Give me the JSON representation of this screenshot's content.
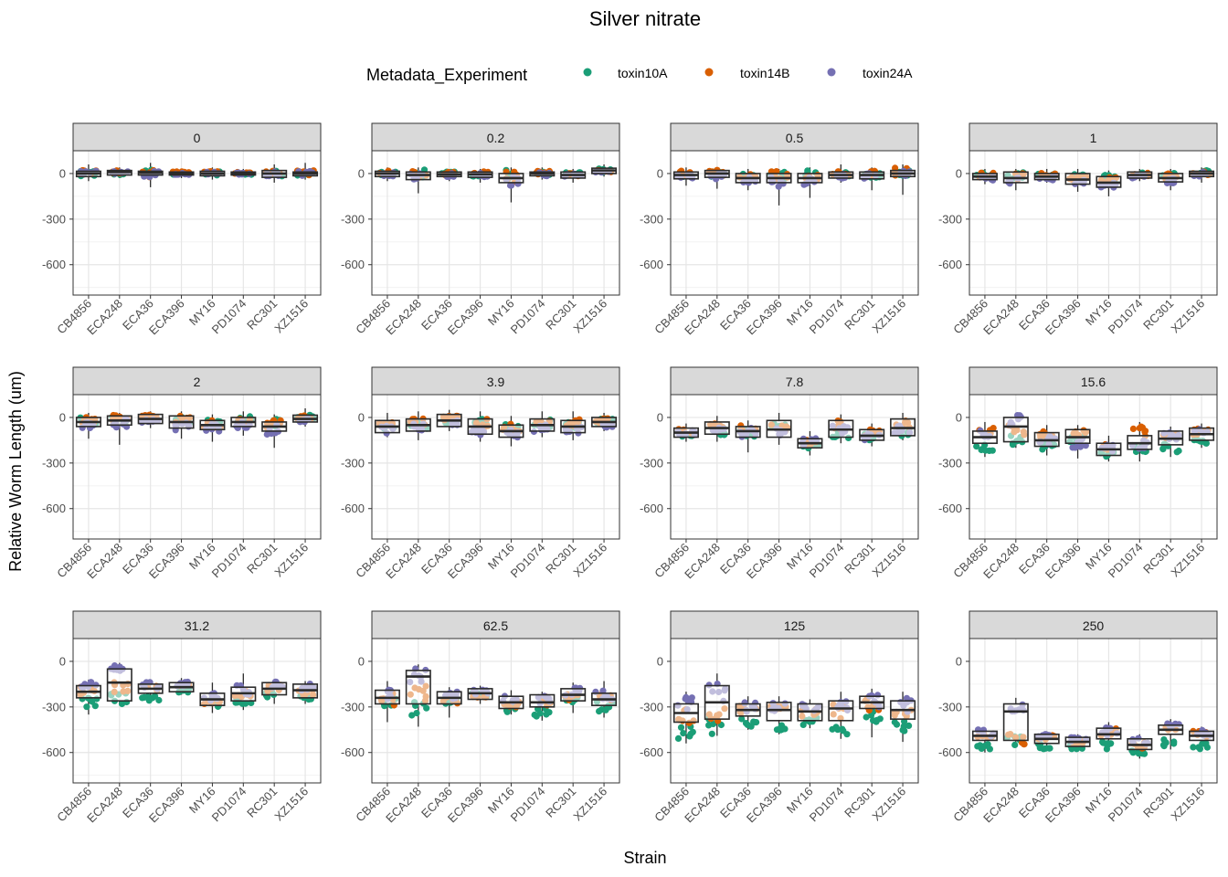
{
  "chart_data": {
    "type": "boxplot-jitter-facets",
    "title": "Silver nitrate",
    "xlabel": "Strain",
    "ylabel": "Relative Worm Length (um)",
    "ylim": [
      -800,
      150
    ],
    "yticks": [
      0,
      -300,
      -600
    ],
    "legend": {
      "title": "Metadata_Experiment",
      "position": "top",
      "entries": [
        {
          "name": "toxin10A",
          "color": "#1B9E77"
        },
        {
          "name": "toxin14B",
          "color": "#D95F02"
        },
        {
          "name": "toxin24A",
          "color": "#7570B3"
        }
      ]
    },
    "categories": [
      "CB4856",
      "ECA248",
      "ECA36",
      "ECA396",
      "MY16",
      "PD1074",
      "RC301",
      "XZ1516"
    ],
    "series_order": [
      "toxin10A",
      "toxin14B",
      "toxin24A"
    ],
    "facets": [
      {
        "label": "0",
        "median": [
          0,
          10,
          5,
          0,
          0,
          0,
          0,
          0
        ],
        "q1": [
          -20,
          -10,
          -10,
          -10,
          -15,
          -10,
          -25,
          -15
        ],
        "q3": [
          15,
          20,
          15,
          10,
          15,
          10,
          20,
          10
        ],
        "min": [
          -50,
          -30,
          -90,
          -30,
          -40,
          -20,
          -60,
          -40
        ],
        "max": [
          60,
          40,
          70,
          30,
          40,
          30,
          60,
          70
        ],
        "exp_mean": [
          [
            0,
            0,
            10,
            0,
            0,
            0,
            0,
            0
          ],
          [
            5,
            10,
            0,
            5,
            5,
            5,
            5,
            5
          ],
          [
            0,
            5,
            0,
            0,
            0,
            0,
            0,
            0
          ]
        ]
      },
      {
        "label": "0.2",
        "median": [
          0,
          -10,
          -5,
          -5,
          -30,
          0,
          -10,
          20
        ],
        "q1": [
          -20,
          -40,
          -20,
          -25,
          -60,
          -15,
          -30,
          0
        ],
        "q3": [
          15,
          10,
          10,
          10,
          0,
          10,
          10,
          35
        ],
        "min": [
          -50,
          -130,
          -50,
          -60,
          -190,
          -40,
          -60,
          -20
        ],
        "max": [
          40,
          40,
          30,
          30,
          40,
          40,
          30,
          60
        ],
        "exp_mean": [
          [
            0,
            0,
            0,
            -5,
            -10,
            0,
            -5,
            20
          ],
          [
            5,
            0,
            0,
            0,
            -20,
            5,
            -5,
            20
          ],
          [
            -5,
            -25,
            -10,
            -10,
            -50,
            -5,
            -15,
            15
          ]
        ]
      },
      {
        "label": "0.5",
        "median": [
          -10,
          0,
          -30,
          -30,
          -30,
          -10,
          -10,
          0
        ],
        "q1": [
          -35,
          -25,
          -60,
          -60,
          -60,
          -30,
          -35,
          -20
        ],
        "q3": [
          10,
          20,
          0,
          0,
          0,
          10,
          10,
          20
        ],
        "min": [
          -80,
          -100,
          -110,
          -210,
          -160,
          -60,
          -110,
          -140
        ],
        "max": [
          40,
          40,
          30,
          30,
          40,
          60,
          40,
          60
        ],
        "exp_mean": [
          [
            -10,
            0,
            -20,
            -20,
            -10,
            -5,
            -5,
            5
          ],
          [
            0,
            5,
            -20,
            -15,
            -20,
            0,
            0,
            10
          ],
          [
            -20,
            -15,
            -45,
            -50,
            -50,
            -20,
            -20,
            -10
          ]
        ]
      },
      {
        "label": "1",
        "median": [
          -20,
          -30,
          -20,
          -40,
          -60,
          -10,
          -30,
          0
        ],
        "q1": [
          -40,
          -60,
          -40,
          -70,
          -90,
          -30,
          -55,
          -20
        ],
        "q3": [
          0,
          10,
          0,
          0,
          -20,
          10,
          0,
          15
        ],
        "min": [
          -70,
          -110,
          -60,
          -120,
          -150,
          -50,
          -110,
          -60
        ],
        "max": [
          30,
          30,
          30,
          30,
          20,
          30,
          30,
          40
        ],
        "exp_mean": [
          [
            -10,
            -10,
            -10,
            -20,
            -30,
            -5,
            -15,
            5
          ],
          [
            -10,
            -20,
            -10,
            -30,
            -50,
            -5,
            -20,
            5
          ],
          [
            -30,
            -45,
            -30,
            -60,
            -80,
            -20,
            -45,
            -5
          ]
        ]
      },
      {
        "label": "2",
        "median": [
          -30,
          -20,
          -10,
          -30,
          -50,
          -30,
          -60,
          -10
        ],
        "q1": [
          -60,
          -50,
          -40,
          -70,
          -80,
          -60,
          -90,
          -30
        ],
        "q3": [
          0,
          10,
          20,
          10,
          -20,
          0,
          -30,
          15
        ],
        "min": [
          -140,
          -180,
          -70,
          -140,
          -160,
          -120,
          -200,
          -60
        ],
        "max": [
          30,
          30,
          40,
          40,
          20,
          40,
          20,
          60
        ],
        "exp_mean": [
          [
            -20,
            -10,
            0,
            -15,
            -40,
            -15,
            -40,
            0
          ],
          [
            -20,
            -15,
            0,
            -10,
            -40,
            -20,
            -50,
            0
          ],
          [
            -50,
            -40,
            -30,
            -60,
            -70,
            -50,
            -80,
            -25
          ]
        ]
      },
      {
        "label": "3.9",
        "median": [
          -60,
          -50,
          -20,
          -60,
          -90,
          -50,
          -60,
          -30
        ],
        "q1": [
          -100,
          -90,
          -60,
          -110,
          -130,
          -90,
          -100,
          -60
        ],
        "q3": [
          -20,
          -10,
          20,
          -10,
          -50,
          -10,
          -20,
          0
        ],
        "min": [
          -130,
          -150,
          -90,
          -160,
          -190,
          -130,
          -150,
          -90
        ],
        "max": [
          30,
          40,
          50,
          40,
          10,
          40,
          40,
          30
        ],
        "exp_mean": [
          [
            -50,
            -50,
            -20,
            -40,
            -70,
            -40,
            -50,
            -20
          ],
          [
            -40,
            -30,
            0,
            -40,
            -70,
            -30,
            -40,
            -20
          ],
          [
            -80,
            -70,
            -40,
            -90,
            -110,
            -70,
            -80,
            -50
          ]
        ]
      },
      {
        "label": "7.8",
        "median": [
          -100,
          -70,
          -90,
          -80,
          -170,
          -80,
          -120,
          -70
        ],
        "q1": [
          -130,
          -110,
          -130,
          -130,
          -200,
          -130,
          -150,
          -120
        ],
        "q3": [
          -70,
          -30,
          -60,
          -20,
          -140,
          -20,
          -80,
          -10
        ],
        "min": [
          -160,
          -160,
          -230,
          -180,
          -250,
          -170,
          -190,
          -150
        ],
        "max": [
          -40,
          10,
          -20,
          30,
          -90,
          20,
          -40,
          30
        ],
        "exp_mean": [
          [
            -110,
            -90,
            -100,
            -70,
            -180,
            -110,
            -130,
            -100
          ],
          [
            -90,
            -60,
            -80,
            -70,
            -170,
            -50,
            -100,
            -40
          ],
          [
            -100,
            -70,
            -100,
            -100,
            -160,
            -80,
            -130,
            -80
          ]
        ]
      },
      {
        "label": "15.6",
        "median": [
          -130,
          -60,
          -150,
          -130,
          -210,
          -170,
          -140,
          -110
        ],
        "q1": [
          -170,
          -160,
          -190,
          -170,
          -250,
          -210,
          -180,
          -150
        ],
        "q3": [
          -90,
          0,
          -100,
          -80,
          -170,
          -120,
          -90,
          -70
        ],
        "min": [
          -260,
          -200,
          -250,
          -270,
          -290,
          -290,
          -260,
          -200
        ],
        "max": [
          -30,
          30,
          -50,
          -50,
          -120,
          -30,
          -60,
          -40
        ],
        "exp_mean": [
          [
            -200,
            -150,
            -180,
            -150,
            -240,
            -230,
            -200,
            -160
          ],
          [
            -100,
            -80,
            -120,
            -90,
            -200,
            -100,
            -110,
            -90
          ],
          [
            -110,
            -20,
            -150,
            -170,
            -200,
            -170,
            -120,
            -90
          ]
        ]
      },
      {
        "label": "31.2",
        "median": [
          -200,
          -140,
          -180,
          -170,
          -250,
          -210,
          -180,
          -190
        ],
        "q1": [
          -240,
          -260,
          -210,
          -200,
          -290,
          -260,
          -220,
          -240
        ],
        "q3": [
          -160,
          -50,
          -150,
          -140,
          -210,
          -170,
          -140,
          -150
        ],
        "min": [
          -350,
          -280,
          -270,
          -220,
          -340,
          -320,
          -280,
          -280
        ],
        "max": [
          -120,
          -10,
          -120,
          -110,
          -140,
          -80,
          -120,
          -130
        ],
        "exp_mean": [
          [
            -270,
            -250,
            -240,
            -190,
            -270,
            -260,
            -220,
            -230
          ],
          [
            -200,
            -170,
            -180,
            -160,
            -250,
            -200,
            -180,
            -200
          ],
          [
            -170,
            -60,
            -160,
            -150,
            -230,
            -190,
            -150,
            -170
          ]
        ]
      },
      {
        "label": "62.5",
        "median": [
          -240,
          -100,
          -240,
          -210,
          -270,
          -270,
          -220,
          -250
        ],
        "q1": [
          -280,
          -280,
          -280,
          -250,
          -310,
          -300,
          -260,
          -290
        ],
        "q3": [
          -190,
          -60,
          -200,
          -180,
          -230,
          -220,
          -180,
          -210
        ],
        "min": [
          -400,
          -430,
          -370,
          -280,
          -350,
          -390,
          -340,
          -370
        ],
        "max": [
          -130,
          -20,
          -170,
          -160,
          -190,
          -200,
          -140,
          -130
        ],
        "exp_mean": [
          [
            -270,
            -320,
            -270,
            -220,
            -310,
            -340,
            -240,
            -300
          ],
          [
            -250,
            -220,
            -250,
            -220,
            -280,
            -260,
            -230,
            -250
          ],
          [
            -210,
            -80,
            -220,
            -200,
            -250,
            -250,
            -200,
            -220
          ]
        ]
      },
      {
        "label": "125",
        "median": [
          -340,
          -270,
          -320,
          -320,
          -330,
          -310,
          -270,
          -320
        ],
        "q1": [
          -400,
          -380,
          -360,
          -390,
          -390,
          -390,
          -310,
          -380
        ],
        "q3": [
          -280,
          -160,
          -280,
          -270,
          -280,
          -260,
          -230,
          -260
        ],
        "min": [
          -540,
          -490,
          -450,
          -480,
          -440,
          -510,
          -500,
          -530
        ],
        "max": [
          -200,
          -80,
          -230,
          -230,
          -250,
          -200,
          -180,
          -200
        ],
        "exp_mean": [
          [
            -480,
            -420,
            -400,
            -430,
            -400,
            -460,
            -380,
            -440
          ],
          [
            -360,
            -350,
            -320,
            -320,
            -340,
            -330,
            -290,
            -350
          ],
          [
            -280,
            -200,
            -300,
            -300,
            -300,
            -290,
            -260,
            -290
          ]
        ]
      },
      {
        "label": "250",
        "median": [
          -490,
          -330,
          -510,
          -530,
          -480,
          -550,
          -450,
          -490
        ],
        "q1": [
          -520,
          -520,
          -540,
          -560,
          -510,
          -580,
          -480,
          -520
        ],
        "q3": [
          -460,
          -280,
          -480,
          -500,
          -440,
          -510,
          -420,
          -460
        ],
        "min": [
          -600,
          -550,
          -580,
          -590,
          -580,
          -640,
          -580,
          -590
        ],
        "max": [
          -440,
          -240,
          -460,
          -480,
          -400,
          -480,
          -380,
          -430
        ],
        "exp_mean": [
          [
            -560,
            -520,
            -560,
            -560,
            -550,
            -600,
            -530,
            -560
          ],
          [
            -480,
            -520,
            -500,
            -530,
            -470,
            -550,
            -430,
            -480
          ],
          [
            -470,
            -330,
            -490,
            -510,
            -460,
            -520,
            -430,
            -470
          ]
        ]
      }
    ]
  }
}
